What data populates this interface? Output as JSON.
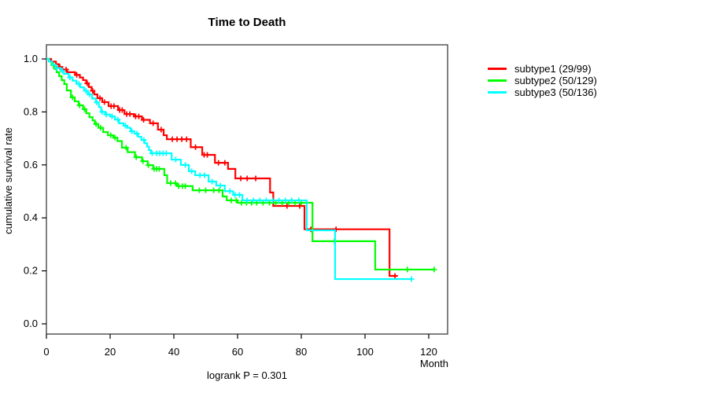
{
  "chart_data": {
    "type": "line",
    "subtype": "kaplan-meier-step",
    "title": "Time to Death",
    "xlabel": "Month",
    "ylabel": "cumulative survival rate",
    "annotation": "logrank P = 0.301",
    "xlim": [
      0,
      126
    ],
    "ylim": [
      0.0,
      1.0
    ],
    "x_ticks": [
      0,
      20,
      40,
      60,
      80,
      100,
      120
    ],
    "y_ticks": [
      "0.0",
      "0.2",
      "0.4",
      "0.6",
      "0.8",
      "1.0"
    ],
    "grid": false,
    "legend_position": "right-outside",
    "frame_color": "#3c3c3c",
    "axis_color": "#000000",
    "series": [
      {
        "name": "subtype1",
        "label": "subtype1 (29/99)",
        "color": "#ff0000",
        "end": 110.3,
        "steps": [
          [
            0,
            1.0
          ],
          [
            1.5,
            0.99
          ],
          [
            3,
            0.98
          ],
          [
            4,
            0.97
          ],
          [
            5,
            0.96
          ],
          [
            6.5,
            0.95
          ],
          [
            9,
            0.94
          ],
          [
            10.5,
            0.93
          ],
          [
            11.5,
            0.92
          ],
          [
            12.5,
            0.908
          ],
          [
            13.3,
            0.894
          ],
          [
            14.2,
            0.88
          ],
          [
            15,
            0.866
          ],
          [
            16,
            0.852
          ],
          [
            17.5,
            0.837
          ],
          [
            19.5,
            0.822
          ],
          [
            22.5,
            0.807
          ],
          [
            24.5,
            0.792
          ],
          [
            27.5,
            0.783
          ],
          [
            30,
            0.77
          ],
          [
            32.5,
            0.757
          ],
          [
            35,
            0.733
          ],
          [
            36.8,
            0.712
          ],
          [
            37.8,
            0.697
          ],
          [
            45.3,
            0.667
          ],
          [
            48.9,
            0.638
          ],
          [
            52.9,
            0.608
          ],
          [
            57,
            0.585
          ],
          [
            59.3,
            0.549
          ],
          [
            70.2,
            0.496
          ],
          [
            71.2,
            0.445
          ],
          [
            81,
            0.357
          ],
          [
            107.7,
            0.181
          ]
        ],
        "censors": [
          4.2,
          6.2,
          9.5,
          12.8,
          14.5,
          16.8,
          18.2,
          20.3,
          21.2,
          23,
          23.8,
          25.2,
          26.2,
          28,
          29,
          30.5,
          33.5,
          36,
          39.5,
          41,
          42.5,
          44,
          46.8,
          49.5,
          50.5,
          54,
          56,
          61,
          63,
          65.7,
          75.5,
          79.5,
          83,
          90.9,
          109.4
        ]
      },
      {
        "name": "subtype2",
        "label": "subtype2 (50/129)",
        "color": "#00ff00",
        "end": 121.7,
        "steps": [
          [
            0,
            1.0
          ],
          [
            0.8,
            0.99
          ],
          [
            1.6,
            0.977
          ],
          [
            2.4,
            0.963
          ],
          [
            3.2,
            0.95
          ],
          [
            4,
            0.935
          ],
          [
            4.8,
            0.92
          ],
          [
            5.6,
            0.905
          ],
          [
            6.4,
            0.881
          ],
          [
            7.7,
            0.855
          ],
          [
            8.9,
            0.84
          ],
          [
            10.1,
            0.825
          ],
          [
            11.5,
            0.81
          ],
          [
            12.5,
            0.795
          ],
          [
            13.5,
            0.78
          ],
          [
            14.5,
            0.768
          ],
          [
            15.2,
            0.754
          ],
          [
            16.3,
            0.74
          ],
          [
            17.8,
            0.724
          ],
          [
            19.3,
            0.712
          ],
          [
            21,
            0.703
          ],
          [
            22.3,
            0.69
          ],
          [
            23.7,
            0.665
          ],
          [
            25.5,
            0.648
          ],
          [
            27.8,
            0.629
          ],
          [
            30,
            0.614
          ],
          [
            31.8,
            0.599
          ],
          [
            33.5,
            0.585
          ],
          [
            37,
            0.561
          ],
          [
            37.9,
            0.531
          ],
          [
            41,
            0.52
          ],
          [
            45.9,
            0.504
          ],
          [
            55.3,
            0.481
          ],
          [
            56.6,
            0.466
          ],
          [
            60,
            0.457
          ],
          [
            83.5,
            0.312
          ],
          [
            103.2,
            0.205
          ]
        ],
        "censors": [
          2.2,
          8.2,
          10.4,
          12,
          15.6,
          17,
          20.2,
          21.5,
          25,
          28.2,
          30.3,
          32,
          33.8,
          34.6,
          35.4,
          39,
          40.5,
          41.5,
          42.7,
          43.6,
          48,
          50,
          52.5,
          54.2,
          58,
          59.6,
          61.2,
          62.8,
          64.4,
          66,
          68,
          70,
          72,
          74,
          76,
          78,
          80,
          90.4,
          113.3,
          121.7
        ]
      },
      {
        "name": "subtype3",
        "label": "subtype3 (50/136)",
        "color": "#00ffff",
        "end": 114.6,
        "steps": [
          [
            0,
            1.0
          ],
          [
            0.8,
            0.99
          ],
          [
            1.8,
            0.978
          ],
          [
            3,
            0.966
          ],
          [
            4.5,
            0.955
          ],
          [
            5.5,
            0.944
          ],
          [
            7,
            0.93
          ],
          [
            8.2,
            0.918
          ],
          [
            9.4,
            0.906
          ],
          [
            10.6,
            0.893
          ],
          [
            11.8,
            0.88
          ],
          [
            13,
            0.866
          ],
          [
            14.3,
            0.851
          ],
          [
            15.5,
            0.836
          ],
          [
            16.5,
            0.818
          ],
          [
            17.2,
            0.8
          ],
          [
            18.5,
            0.79
          ],
          [
            20,
            0.783
          ],
          [
            21.5,
            0.771
          ],
          [
            22.8,
            0.757
          ],
          [
            24.2,
            0.748
          ],
          [
            25.4,
            0.74
          ],
          [
            26.4,
            0.727
          ],
          [
            27.6,
            0.718
          ],
          [
            28.8,
            0.706
          ],
          [
            29.8,
            0.694
          ],
          [
            30.8,
            0.682
          ],
          [
            31.6,
            0.669
          ],
          [
            32.2,
            0.656
          ],
          [
            32.8,
            0.644
          ],
          [
            39.3,
            0.62
          ],
          [
            42.2,
            0.6
          ],
          [
            44.7,
            0.576
          ],
          [
            46.7,
            0.561
          ],
          [
            50.9,
            0.537
          ],
          [
            53.3,
            0.522
          ],
          [
            56,
            0.501
          ],
          [
            58.6,
            0.487
          ],
          [
            61.5,
            0.466
          ],
          [
            81.7,
            0.353
          ],
          [
            90.6,
            0.169
          ]
        ],
        "censors": [
          3.2,
          5,
          7.4,
          10.2,
          12.4,
          13.5,
          15.8,
          17.5,
          18.8,
          20.6,
          22.4,
          24.8,
          26.8,
          28.4,
          30.6,
          33.2,
          34.6,
          35.6,
          36.6,
          37.6,
          40.6,
          43.6,
          45.6,
          48.2,
          49.6,
          52,
          54.6,
          57.6,
          59.2,
          60.6,
          63,
          65,
          67,
          69,
          71,
          73,
          75,
          77,
          79.2,
          114.6
        ]
      }
    ]
  }
}
